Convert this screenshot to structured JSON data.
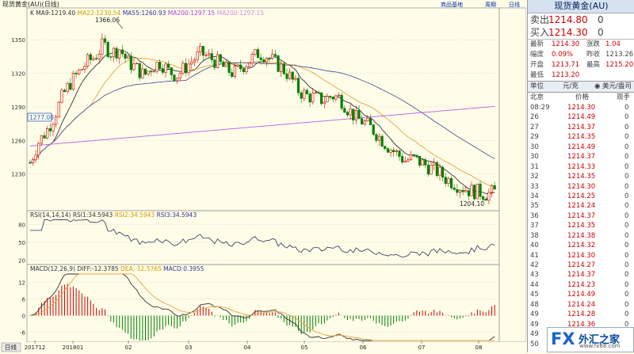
{
  "chart_header": {
    "title": "现货黄金(AU)(日线)",
    "buttons": [
      "商品基地",
      "周期",
      "日线"
    ]
  },
  "panels": {
    "main": {
      "legend": [
        {
          "label": "K",
          "color": "#333333"
        },
        {
          "label": "MA9:1219.40",
          "color": "#333333"
        },
        {
          "label": "MA22:1230.54",
          "color": "#d49a00"
        },
        {
          "label": "MA55:1260.93",
          "color": "#333399"
        },
        {
          "label": "MA200:1297.15",
          "color": "#b040e0"
        },
        {
          "label": "MA200:1297.15",
          "color": "#d08ae8"
        }
      ],
      "y_ticks": [
        1230,
        1260,
        1290,
        1320,
        1350
      ],
      "price_tag": "1277.08",
      "high_label": "1366.06",
      "low_label": "1204.10"
    },
    "rsi": {
      "legend": [
        {
          "label": "RSI(14,14,14)",
          "color": "#333333"
        },
        {
          "label": "RSI1:34.5943",
          "color": "#333333"
        },
        {
          "label": "RSI2:34.5943",
          "color": "#d49a00"
        },
        {
          "label": "RSI3:34.5943",
          "color": "#333399"
        }
      ],
      "y_ticks": [
        20,
        50,
        80
      ]
    },
    "macd": {
      "legend": [
        {
          "label": "MACD(12,26,9)",
          "color": "#333333"
        },
        {
          "label": "DIFF:-12.3785",
          "color": "#333333"
        },
        {
          "label": "DEA:-12.5765",
          "color": "#d49a00"
        },
        {
          "label": "MACD:0.3955",
          "color": "#333399"
        }
      ],
      "y_ticks": [
        -6,
        0,
        6,
        12
      ]
    }
  },
  "x_axis": {
    "label": "日线",
    "ticks": [
      "201712",
      "201801",
      "02",
      "03",
      "04",
      "05",
      "06",
      "07",
      "08"
    ]
  },
  "chart_data": {
    "type": "line",
    "series": [
      {
        "values": [
          1240,
          1258,
          1268,
          1282,
          1300,
          1312,
          1321,
          1330,
          1335,
          1346,
          1338,
          1342,
          1330,
          1325,
          1318,
          1326,
          1330,
          1322,
          1318,
          1325,
          1332,
          1338,
          1334,
          1330,
          1324,
          1320,
          1326,
          1332,
          1338,
          1336,
          1330,
          1324,
          1316,
          1304,
          1300,
          1298,
          1296,
          1300,
          1298,
          1288,
          1280,
          1276,
          1270,
          1262,
          1254,
          1248,
          1242,
          1244,
          1240,
          1236,
          1232,
          1226,
          1222,
          1218,
          1215,
          1214,
          1212,
          1214
        ]
      }
    ],
    "ylim": [
      1200,
      1370
    ]
  },
  "quote": {
    "title": "现货黄金(AU)",
    "sell_label": "卖出",
    "sell_price": "1214.80",
    "sell_vol": "0",
    "buy_label": "买入",
    "buy_price": "1214.30",
    "buy_vol": "0",
    "stats": [
      {
        "k1": "最新",
        "v1": "1214.30",
        "k2": "涨跌",
        "v2": "1.04"
      },
      {
        "k1": "幅度",
        "v1": "0.09%",
        "k2": "昨收",
        "v2": "1213.26"
      },
      {
        "k1": "开盘",
        "v1": "1213.71",
        "k2": "最高",
        "v2": "1215.20"
      },
      {
        "k1": "最低",
        "v1": "1213.20",
        "k2": "",
        "v2": ""
      }
    ],
    "unit_label": "单位",
    "unit_value": "元/克",
    "unit_option": "美元/盎司",
    "tick_headers": {
      "time": "北京",
      "price": "价格",
      "vol": "现手"
    },
    "ticks": [
      {
        "t": "08:29",
        "p": "1214.30",
        "v": "0"
      },
      {
        "t": "26",
        "p": "1214.49",
        "v": "0"
      },
      {
        "t": "27",
        "p": "1214.37",
        "v": "0"
      },
      {
        "t": "29",
        "p": "1214.35",
        "v": "0"
      },
      {
        "t": "30",
        "p": "1214.49",
        "v": "0"
      },
      {
        "t": "30",
        "p": "1214.37",
        "v": "0"
      },
      {
        "t": "31",
        "p": "1214.33",
        "v": "0"
      },
      {
        "t": "32",
        "p": "1214.35",
        "v": "0"
      },
      {
        "t": "33",
        "p": "1214.30",
        "v": "0"
      },
      {
        "t": "34",
        "p": "1214.25",
        "v": "0"
      },
      {
        "t": "35",
        "p": "1214.24",
        "v": "0"
      },
      {
        "t": "36",
        "p": "1214.37",
        "v": "0"
      },
      {
        "t": "37",
        "p": "1214.35",
        "v": "0"
      },
      {
        "t": "38",
        "p": "1214.38",
        "v": "0"
      },
      {
        "t": "40",
        "p": "1214.32",
        "v": "0"
      },
      {
        "t": "41",
        "p": "1214.30",
        "v": "0"
      },
      {
        "t": "42",
        "p": "1214.27",
        "v": "0"
      },
      {
        "t": "43",
        "p": "1214.37",
        "v": "0"
      },
      {
        "t": "44",
        "p": "1214.23",
        "v": "0"
      },
      {
        "t": "45",
        "p": "1214.49",
        "v": "0"
      },
      {
        "t": "48",
        "p": "1214.24",
        "v": "0"
      },
      {
        "t": "49",
        "p": "1214.28",
        "v": "0"
      },
      {
        "t": "49",
        "p": "1214.36",
        "v": "0"
      },
      {
        "t": "49",
        "p": "1214.32",
        "v": "0"
      },
      {
        "t": "50",
        "p": "1214.35",
        "v": "0"
      }
    ]
  },
  "logo": {
    "fx": "FX",
    "cn": "外汇之家",
    "url": "www.fx68.com"
  },
  "colors": {
    "up": "#d00000",
    "down": "#008000",
    "ma22": "#e8a040",
    "ma55": "#555599",
    "ma200": "#b860e8",
    "bg": "#fffde8"
  }
}
